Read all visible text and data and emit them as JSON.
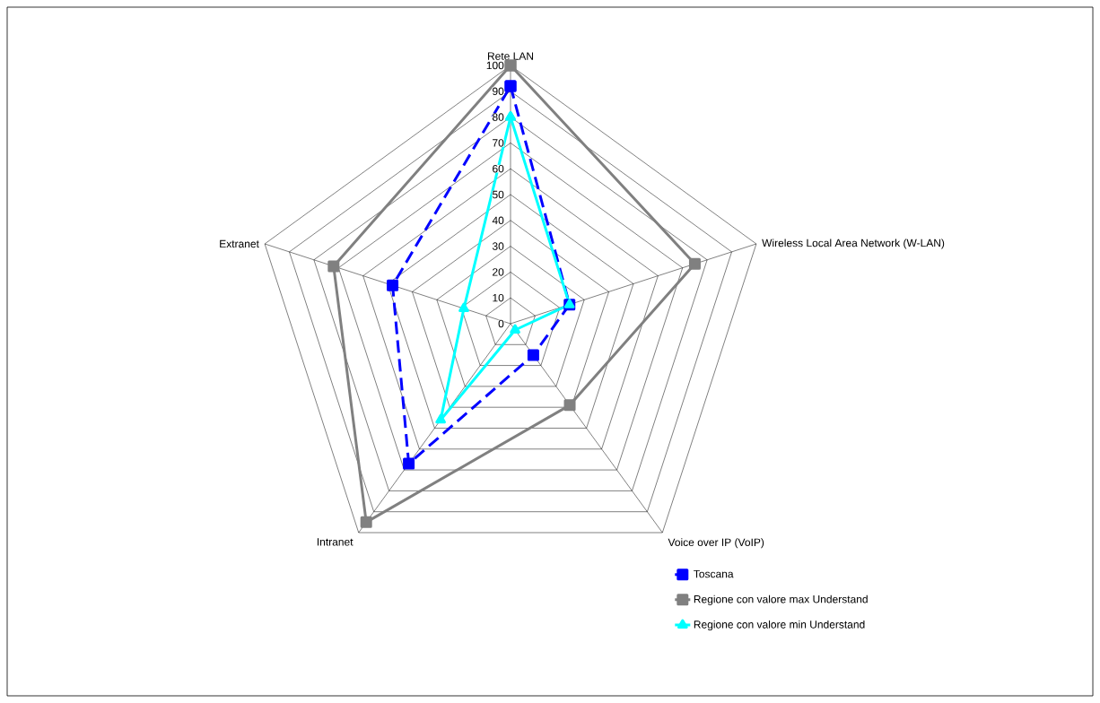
{
  "chart_data": {
    "type": "radar",
    "categories": [
      "Rete LAN",
      "Wireless Local Area Network (W-LAN)",
      "Voice over IP (VoIP)",
      "Intranet",
      "Extranet"
    ],
    "series": [
      {
        "name": "Toscana",
        "color": "#0000ff",
        "marker": "square",
        "line_style": "dashed",
        "values": [
          92,
          24,
          15,
          67,
          48
        ]
      },
      {
        "name": "Regione con valore max Understand",
        "color": "#808080",
        "marker": "square",
        "line_style": "solid",
        "values": [
          100,
          75,
          39,
          95,
          72
        ]
      },
      {
        "name": "Regione con valore min Understand",
        "color": "#00ffff",
        "marker": "triangle",
        "line_style": "solid",
        "values": [
          80,
          24,
          3,
          46,
          19
        ]
      }
    ],
    "ylim": [
      0,
      100
    ],
    "yticks": [
      0,
      10,
      20,
      30,
      40,
      50,
      60,
      70,
      80,
      90,
      100
    ],
    "legend": "bottom right"
  }
}
